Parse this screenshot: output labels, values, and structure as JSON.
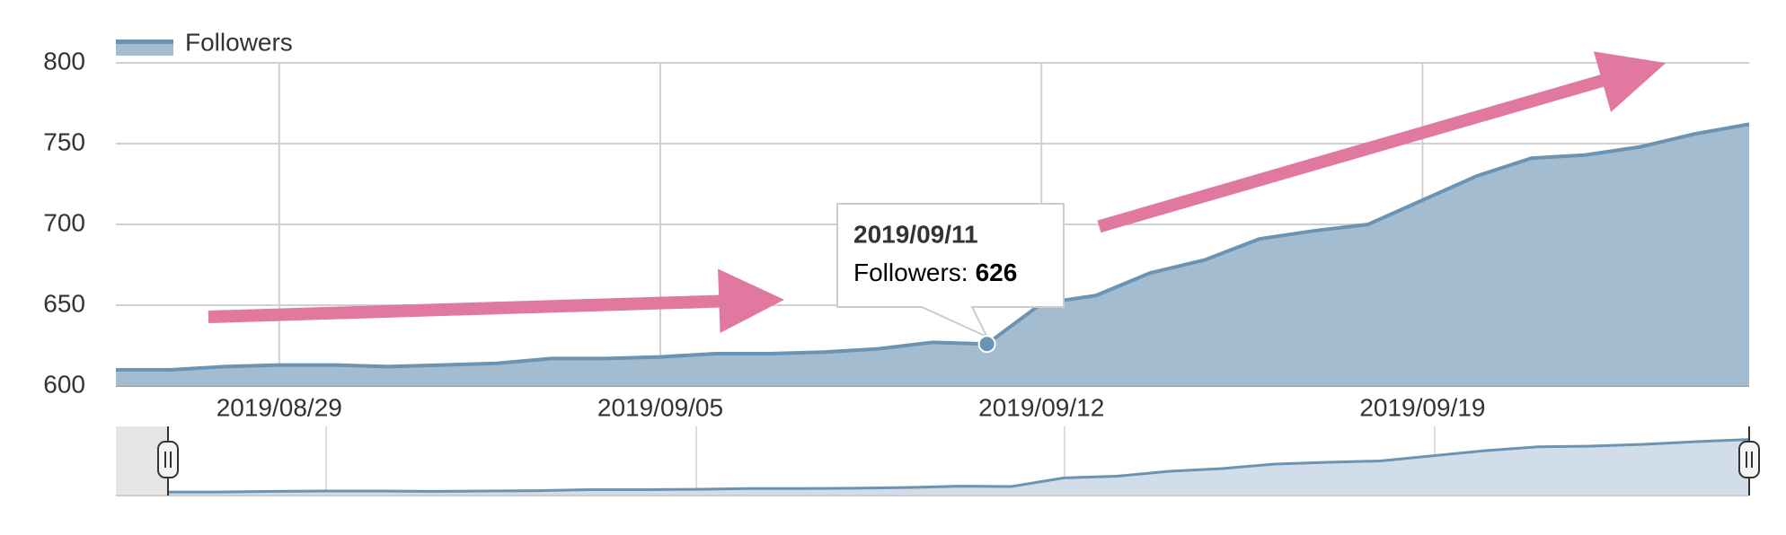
{
  "chart_data": {
    "type": "area",
    "x": [
      "2019/08/26",
      "2019/08/27",
      "2019/08/28",
      "2019/08/29",
      "2019/08/30",
      "2019/08/31",
      "2019/09/01",
      "2019/09/02",
      "2019/09/03",
      "2019/09/04",
      "2019/09/05",
      "2019/09/06",
      "2019/09/07",
      "2019/09/08",
      "2019/09/09",
      "2019/09/10",
      "2019/09/11",
      "2019/09/12",
      "2019/09/13",
      "2019/09/14",
      "2019/09/15",
      "2019/09/16",
      "2019/09/17",
      "2019/09/18",
      "2019/09/19",
      "2019/09/20",
      "2019/09/21",
      "2019/09/22",
      "2019/09/23",
      "2019/09/24",
      "2019/09/25"
    ],
    "series": [
      {
        "name": "Followers",
        "color": "#6a93b4",
        "fill": "#a3bcd0",
        "values": [
          610,
          610,
          612,
          613,
          613,
          612,
          613,
          614,
          617,
          617,
          618,
          620,
          620,
          621,
          623,
          627,
          626,
          651,
          656,
          670,
          678,
          691,
          696,
          700,
          715,
          730,
          741,
          743,
          748,
          756,
          762
        ]
      }
    ],
    "ylim": [
      600,
      800
    ],
    "yticks": [
      600,
      650,
      700,
      750,
      800
    ],
    "xticks": [
      "2019/08/29",
      "2019/09/05",
      "2019/09/12",
      "2019/09/19"
    ],
    "grid": true,
    "legend": "top-left",
    "tooltip": {
      "title": "2019/09/11",
      "label": "Followers:",
      "value": 626
    }
  }
}
